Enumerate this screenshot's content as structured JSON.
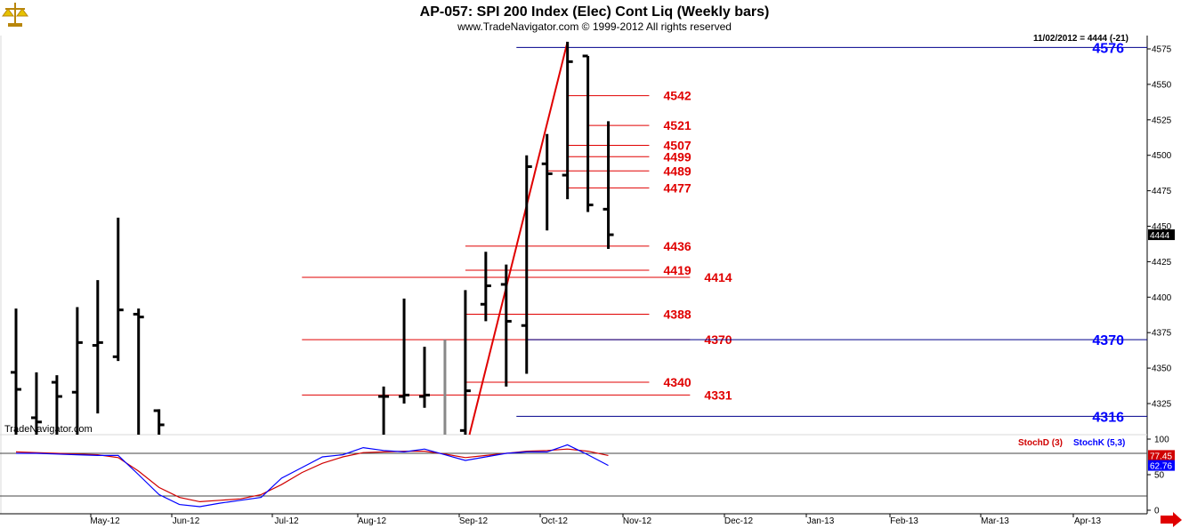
{
  "header": {
    "title": "AP-057:  SPI 200 Index (Elec) Cont Liq  (Weekly bars)",
    "subtitle": "www.TradeNavigator.com © 1999-2012 All rights reserved",
    "last_bar_info": "11/02/2012 = 4444 (-21)",
    "watermark": "TradeNavigator.com",
    "logo_icon": "scales-logo-icon"
  },
  "colors": {
    "bars": "#000000",
    "gray_bar": "#888888",
    "red_levels": "#e00000",
    "blue_levels": "#00008b",
    "blue_label": "#0000ff",
    "stoch_d": "#d00000",
    "stoch_k": "#0000ff",
    "nav_arrow": "#e00000"
  },
  "chart_data": [
    {
      "type": "ohlc",
      "title": "SPI 200 Index (Elec) Cont Liq",
      "ylim": [
        4300,
        4590
      ],
      "y_ticks": [
        4325,
        4350,
        4375,
        4400,
        4425,
        4450,
        4475,
        4500,
        4525,
        4550,
        4575
      ],
      "x_ticks": [
        "May-12",
        "Jun-12",
        "Jul-12",
        "Aug-12",
        "Sep-12",
        "Oct-12",
        "Nov-12",
        "Dec-12",
        "Jan-13",
        "Feb-13",
        "Mar-13",
        "Apr-13"
      ],
      "last_price": "4444",
      "bars": [
        {
          "week": 0,
          "o": 4347,
          "h": 4392,
          "l": 4300,
          "c": 4335
        },
        {
          "week": 1,
          "o": 4315,
          "h": 4347,
          "l": 4300,
          "c": 4312
        },
        {
          "week": 2,
          "o": 4340,
          "h": 4345,
          "l": 4300,
          "c": 4330
        },
        {
          "week": 3,
          "o": 4333,
          "h": 4393,
          "l": 4300,
          "c": 4368
        },
        {
          "week": 4,
          "o": 4366,
          "h": 4412,
          "l": 4318,
          "c": 4368
        },
        {
          "week": 5,
          "o": 4358,
          "h": 4456,
          "l": 4355,
          "c": 4391
        },
        {
          "week": 6,
          "o": 4388,
          "h": 4392,
          "l": 4300,
          "c": 4386
        },
        {
          "week": 7,
          "o": 4320,
          "h": 4321,
          "l": 4300,
          "c": 4310
        },
        {
          "week": 18,
          "o": 4330,
          "h": 4337,
          "l": 4300,
          "c": 4330
        },
        {
          "week": 19,
          "o": 4330,
          "h": 4399,
          "l": 4325,
          "c": 4331
        },
        {
          "week": 20,
          "o": 4330,
          "h": 4365,
          "l": 4322,
          "c": 4331
        },
        {
          "week": 21,
          "o": 4303,
          "h": 4370,
          "l": 4300,
          "c": 4302,
          "gray": true
        },
        {
          "week": 22,
          "o": 4306,
          "h": 4405,
          "l": 4300,
          "c": 4334
        },
        {
          "week": 23,
          "o": 4395,
          "h": 4432,
          "l": 4383,
          "c": 4408
        },
        {
          "week": 24,
          "o": 4409,
          "h": 4423,
          "l": 4337,
          "c": 4383
        },
        {
          "week": 25,
          "o": 4380,
          "h": 4500,
          "l": 4346,
          "c": 4492
        },
        {
          "week": 26,
          "o": 4494,
          "h": 4515,
          "l": 4447,
          "c": 4487
        },
        {
          "week": 27,
          "o": 4486,
          "h": 4580,
          "l": 4469,
          "c": 4566
        },
        {
          "week": 28,
          "o": 4570,
          "h": 4570,
          "l": 4460,
          "c": 4465
        },
        {
          "week": 29,
          "o": 4462,
          "h": 4524,
          "l": 4434,
          "c": 4444
        }
      ],
      "trendline": {
        "from": {
          "week": 22.2,
          "price": 4300
        },
        "to": {
          "week": 27,
          "price": 4580
        }
      },
      "red_levels": [
        {
          "label": "4542",
          "price": 4542,
          "from_week": 27,
          "to_week": 31,
          "label_week": 31.7
        },
        {
          "label": "4521",
          "price": 4521,
          "from_week": 28,
          "to_week": 31,
          "label_week": 31.7
        },
        {
          "label": "4507",
          "price": 4507,
          "from_week": 27,
          "to_week": 31,
          "label_week": 31.7
        },
        {
          "label": "4499",
          "price": 4499,
          "from_week": 27,
          "to_week": 31,
          "label_week": 31.7
        },
        {
          "label": "4489",
          "price": 4489,
          "from_week": 26,
          "to_week": 31,
          "label_week": 31.7
        },
        {
          "label": "4477",
          "price": 4477,
          "from_week": 27,
          "to_week": 31,
          "label_week": 31.7
        },
        {
          "label": "4436",
          "price": 4436,
          "from_week": 22,
          "to_week": 31,
          "label_week": 31.7
        },
        {
          "label": "4419",
          "price": 4419,
          "from_week": 22,
          "to_week": 31,
          "label_week": 31.7
        },
        {
          "label": "4414",
          "price": 4414,
          "from_week": 14,
          "to_week": 33,
          "label_week": 33.7
        },
        {
          "label": "4388",
          "price": 4388,
          "from_week": 22,
          "to_week": 31,
          "label_week": 31.7
        },
        {
          "label": "4370",
          "price": 4370,
          "from_week": 14,
          "to_week": 33,
          "label_week": 33.7
        },
        {
          "label": "4340",
          "price": 4340,
          "from_week": 22,
          "to_week": 31,
          "label_week": 31.7
        },
        {
          "label": "4331",
          "price": 4331,
          "from_week": 14,
          "to_week": 33,
          "label_week": 33.7
        }
      ],
      "blue_levels": [
        {
          "label": "4576",
          "price": 4576,
          "from_week": 24.5
        },
        {
          "label": "4370",
          "price": 4370,
          "from_week": 25
        },
        {
          "label": "4316",
          "price": 4316,
          "from_week": 24.5
        }
      ]
    },
    {
      "type": "line",
      "title": "Stochastic",
      "ylim": [
        0,
        100
      ],
      "y_ticks": [
        0,
        50,
        100
      ],
      "ref_lines": [
        20,
        80
      ],
      "series": [
        {
          "name": "StochD (3)",
          "last": "77.45",
          "x": [
            0,
            1,
            2,
            3,
            4,
            5,
            6,
            7,
            8,
            9,
            10,
            11,
            12,
            13,
            14,
            15,
            16,
            17,
            18,
            19,
            20,
            21,
            22,
            23,
            24,
            25,
            26,
            27,
            28,
            29
          ],
          "values": [
            82,
            81,
            80,
            79,
            78,
            74,
            55,
            32,
            18,
            12,
            14,
            16,
            22,
            36,
            53,
            66,
            75,
            81,
            82,
            83,
            83,
            79,
            74,
            77,
            80,
            83,
            84,
            86,
            83,
            77
          ]
        },
        {
          "name": "StochK (5,3)",
          "last": "62.76",
          "x": [
            0,
            1,
            2,
            3,
            4,
            5,
            6,
            7,
            8,
            9,
            10,
            11,
            12,
            13,
            14,
            15,
            16,
            17,
            18,
            19,
            20,
            21,
            22,
            23,
            24,
            25,
            26,
            27,
            28,
            29
          ],
          "values": [
            80,
            80,
            79,
            78,
            77,
            77,
            50,
            22,
            8,
            5,
            10,
            14,
            18,
            45,
            60,
            75,
            78,
            88,
            84,
            82,
            86,
            78,
            70,
            75,
            80,
            82,
            82,
            92,
            78,
            63
          ]
        }
      ]
    }
  ]
}
